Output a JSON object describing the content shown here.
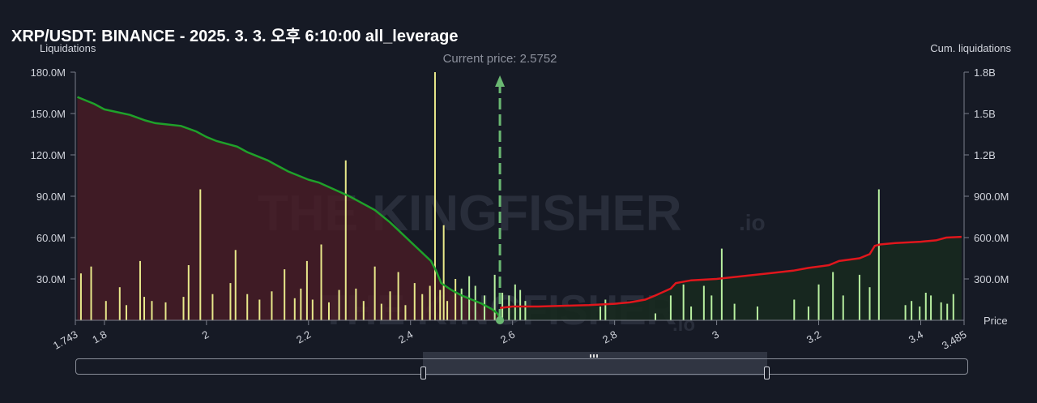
{
  "chart_data": {
    "type": "bar",
    "title": "XRP/USDT: BINANCE - 2025. 3. 3. 오후 6:10:00 all_leverage",
    "xlabel": "Price",
    "ylabel_left": "Liquidations",
    "ylabel_right": "Cum. liquidations",
    "xlim": [
      1.743,
      3.485
    ],
    "ylim_left": [
      0,
      180000000
    ],
    "ylim_right": [
      0,
      1800000000
    ],
    "x_ticks": [
      1.8,
      2,
      2.2,
      2.4,
      2.6,
      2.8,
      3,
      3.2,
      3.4
    ],
    "x_tick_labels": [
      "1.743",
      "1.8",
      "2",
      "2.2",
      "2.4",
      "2.6",
      "2.8",
      "3",
      "3.2",
      "3.4",
      "3.485"
    ],
    "y_left_ticks": [
      30000000,
      60000000,
      90000000,
      120000000,
      150000000,
      180000000
    ],
    "y_left_tick_labels": [
      "30.0M",
      "60.0M",
      "90.0M",
      "120.0M",
      "150.0M",
      "180.0M"
    ],
    "y_right_ticks": [
      300000000,
      600000000,
      900000000,
      1200000000,
      1500000000,
      1800000000
    ],
    "y_right_tick_labels": [
      "300.0M",
      "600.0M",
      "900.0M",
      "1.2B",
      "1.5B",
      "1.8B"
    ],
    "current_price": 2.5752,
    "current_price_label": "Current price: 2.5752",
    "watermark": {
      "brand": "THE KINGFISHER",
      "suffix": ".io"
    },
    "colors": {
      "long_bar": "#e8e88a",
      "short_bar": "#b8f0a0",
      "minor_bar": "#8f93c8",
      "long_cum_line": "#1fa12a",
      "short_cum_line": "#e0161c",
      "long_area": "#4a1c26",
      "short_area": "#17291f",
      "current_price": "#6ab872"
    },
    "series": [
      {
        "kind": "bars-long",
        "x": [
          1.754,
          1.774,
          1.803,
          1.83,
          1.843,
          1.87,
          1.878,
          1.893,
          1.92,
          1.955,
          1.965,
          1.988,
          2.012,
          2.047,
          2.057,
          2.08,
          2.104,
          2.128,
          2.153,
          2.173,
          2.185,
          2.197,
          2.208,
          2.225,
          2.24,
          2.26,
          2.273,
          2.293,
          2.308,
          2.33,
          2.343,
          2.36,
          2.376,
          2.39,
          2.408,
          2.423,
          2.438,
          2.448,
          2.458,
          2.465,
          2.472,
          2.488
        ],
        "values": [
          34000000,
          39000000,
          14000000,
          24000000,
          11000000,
          43000000,
          17000000,
          14000000,
          13000000,
          17000000,
          40000000,
          95000000,
          19000000,
          27000000,
          51000000,
          19000000,
          15000000,
          21000000,
          37000000,
          16000000,
          23000000,
          43000000,
          15000000,
          55000000,
          13000000,
          22000000,
          116000000,
          23000000,
          14000000,
          39000000,
          12000000,
          21000000,
          35000000,
          11000000,
          27000000,
          19000000,
          25000000,
          180000000,
          22000000,
          69000000,
          14000000,
          30000000
        ]
      },
      {
        "kind": "bars-short",
        "x": [
          2.5,
          2.515,
          2.527,
          2.545,
          2.565,
          2.58,
          2.593,
          2.605,
          2.615,
          2.625,
          2.772,
          2.782,
          2.88,
          2.91,
          2.935,
          2.95,
          2.975,
          2.99,
          3.01,
          3.035,
          3.08,
          3.152,
          3.18,
          3.2,
          3.228,
          3.248,
          3.28,
          3.3,
          3.318,
          3.37,
          3.382,
          3.398,
          3.41,
          3.42,
          3.44,
          3.452,
          3.464
        ],
        "values": [
          23000000,
          32000000,
          25000000,
          18000000,
          33000000,
          20000000,
          18000000,
          26000000,
          22000000,
          14000000,
          10000000,
          15000000,
          5000000,
          18000000,
          26000000,
          10000000,
          25000000,
          18000000,
          52000000,
          12000000,
          10000000,
          15000000,
          10000000,
          26000000,
          35000000,
          18000000,
          33000000,
          24000000,
          95000000,
          11000000,
          14000000,
          10000000,
          20000000,
          18000000,
          13000000,
          12000000,
          19000000
        ]
      },
      {
        "kind": "line-cum-long",
        "x": [
          1.747,
          1.76,
          1.78,
          1.8,
          1.85,
          1.88,
          1.9,
          1.95,
          1.98,
          2.0,
          2.02,
          2.06,
          2.08,
          2.12,
          2.14,
          2.16,
          2.18,
          2.2,
          2.22,
          2.25,
          2.28,
          2.3,
          2.33,
          2.36,
          2.38,
          2.4,
          2.42,
          2.44,
          2.45,
          2.46,
          2.48,
          2.5,
          2.52,
          2.54,
          2.55,
          2.56,
          2.57,
          2.5752
        ],
        "values": [
          1620000000,
          1600000000,
          1570000000,
          1530000000,
          1490000000,
          1450000000,
          1430000000,
          1410000000,
          1370000000,
          1330000000,
          1300000000,
          1260000000,
          1220000000,
          1160000000,
          1120000000,
          1080000000,
          1050000000,
          1020000000,
          1000000000,
          950000000,
          900000000,
          860000000,
          800000000,
          710000000,
          640000000,
          570000000,
          500000000,
          430000000,
          360000000,
          270000000,
          220000000,
          180000000,
          150000000,
          120000000,
          100000000,
          80000000,
          50000000,
          20000000
        ]
      },
      {
        "kind": "line-cum-short",
        "x": [
          2.5752,
          2.6,
          2.65,
          2.7,
          2.75,
          2.8,
          2.83,
          2.86,
          2.88,
          2.91,
          2.92,
          2.95,
          3.0,
          3.05,
          3.1,
          3.15,
          3.18,
          3.22,
          3.24,
          3.28,
          3.3,
          3.31,
          3.32,
          3.35,
          3.4,
          3.43,
          3.45,
          3.48
        ],
        "values": [
          90000000,
          100000000,
          100000000,
          105000000,
          110000000,
          120000000,
          130000000,
          150000000,
          180000000,
          230000000,
          270000000,
          290000000,
          300000000,
          320000000,
          340000000,
          360000000,
          380000000,
          400000000,
          430000000,
          450000000,
          480000000,
          540000000,
          550000000,
          560000000,
          570000000,
          580000000,
          600000000,
          605000000
        ]
      }
    ]
  }
}
